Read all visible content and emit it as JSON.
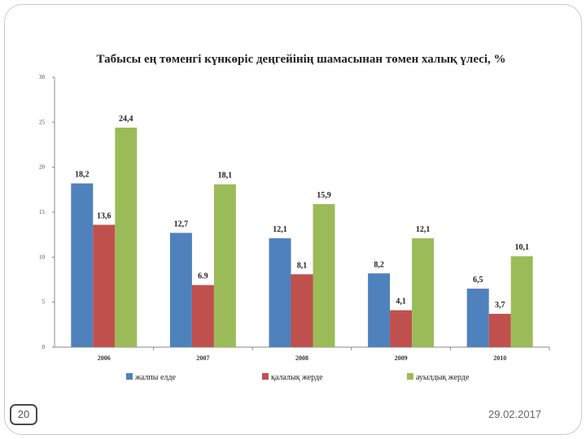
{
  "slide": {
    "page_number": "20",
    "date": "29.02.2017"
  },
  "chart_data": {
    "type": "bar",
    "title": "Табысы ең төменгі күнкөріс деңгейінің шамасынан төмен халық үлесі, %",
    "categories": [
      "2006",
      "2007",
      "2008",
      "2009",
      "2010"
    ],
    "series": [
      {
        "name": "жалпы елде",
        "color": "#4f81bd",
        "values": [
          18.2,
          12.7,
          12.1,
          8.2,
          6.5
        ],
        "labels": [
          "18,2",
          "12,7",
          "12,1",
          "8,2",
          "6,5"
        ]
      },
      {
        "name": "қалалық жерде",
        "color": "#c0504d",
        "values": [
          13.6,
          6.9,
          8.1,
          4.1,
          3.7
        ],
        "labels": [
          "13,6",
          "6.9",
          "8,1",
          "4,1",
          "3,7"
        ]
      },
      {
        "name": "ауылдық жерде",
        "color": "#9bbb59",
        "values": [
          24.4,
          18.1,
          15.9,
          12.1,
          10.1
        ],
        "labels": [
          "24,4",
          "18,1",
          "15,9",
          "12,1",
          "10,1"
        ]
      }
    ],
    "yticks": [
      "0",
      "5",
      "10",
      "15",
      "20",
      "25",
      "30"
    ],
    "ylim": [
      0,
      30
    ],
    "grid": false,
    "legend_position": "bottom"
  }
}
